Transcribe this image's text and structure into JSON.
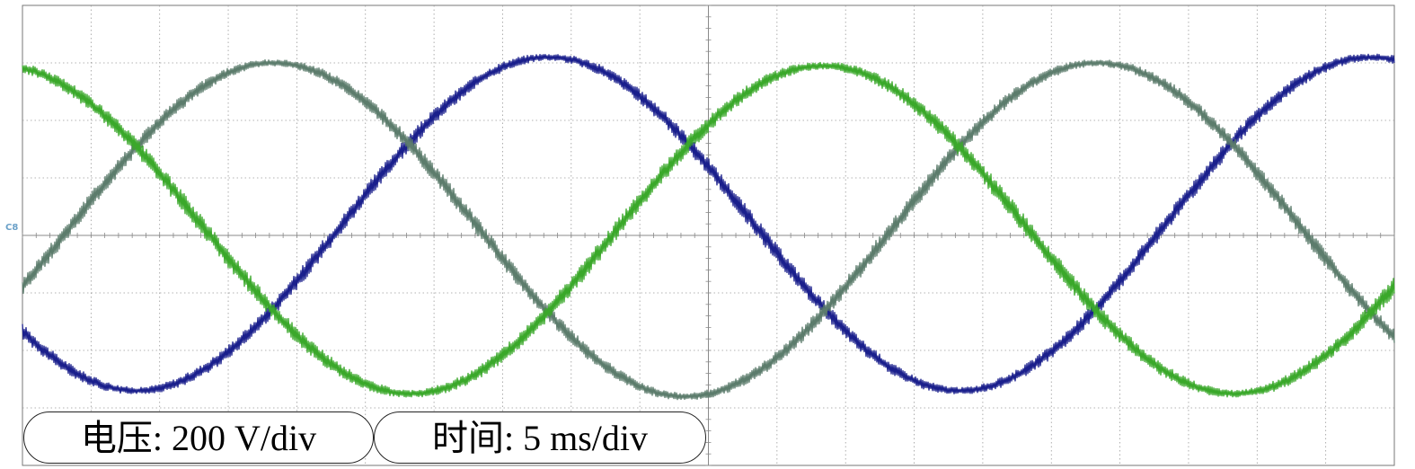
{
  "chart_data": {
    "type": "line",
    "x_unit": "ms",
    "y_unit": "V",
    "xlim": [
      0,
      50
    ],
    "ylim": [
      -800,
      800
    ],
    "grid": true,
    "grid_divisions": {
      "x": 10,
      "y": 8
    },
    "colors": {
      "grid": "#9a9a9a",
      "frame": "#777777"
    },
    "scale_labels": [
      "电压: 200 V/div",
      "时间: 5 ms/div"
    ],
    "channel_marker": "C8",
    "series": [
      {
        "color": "#1a1f8c",
        "amplitude": 580,
        "offset": 40,
        "period_ms": 30,
        "phase_deg": 220,
        "ripple": 22
      },
      {
        "color": "#5c7c6c",
        "amplitude": 580,
        "offset": 20,
        "period_ms": 30,
        "phase_deg": 340,
        "ripple": 22
      },
      {
        "color": "#3aa82a",
        "amplitude": 570,
        "offset": 20,
        "period_ms": 30,
        "phase_deg": 100,
        "ripple": 24
      }
    ]
  }
}
